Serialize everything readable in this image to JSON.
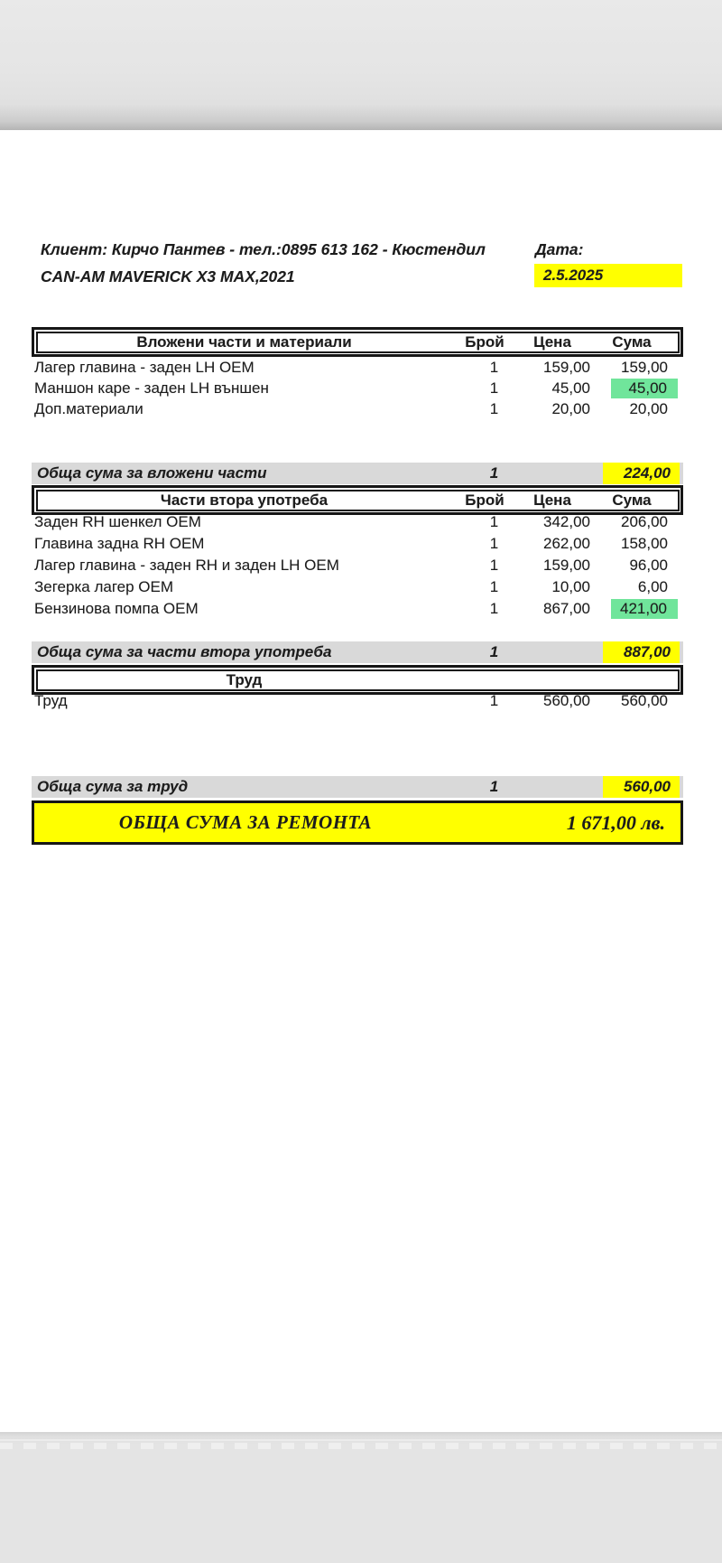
{
  "document": {
    "client_line": "Клиент: Кирчо Пантев - тел.:0895 613 162 - Кюстендил",
    "date_label": "Дата:",
    "vehicle_line": "CAN-AM MAVERICK X3 MAX,2021",
    "date_value": "2.5.2025"
  },
  "columns": {
    "qty": "Брой",
    "price": "Цена",
    "sum": "Сума"
  },
  "sections": [
    {
      "title": "Вложени части и материали",
      "rows": [
        {
          "name": "Лагер главина -  заден LH OEM",
          "qty": "1",
          "price": "159,00",
          "sum": "159,00"
        },
        {
          "name": "Маншон каре - заден LH външен",
          "qty": "1",
          "price": "45,00",
          "sum": "45,00",
          "sum_highlight": "green"
        },
        {
          "name": "Доп.материали",
          "qty": "1",
          "price": "20,00",
          "sum": "20,00"
        }
      ],
      "total": {
        "label": "Обща сума за вложени части",
        "qty": "1",
        "sum": "224,00"
      }
    },
    {
      "title": "Части втора употреба",
      "rows": [
        {
          "name": "Заден RH шенкел OEM",
          "qty": "1",
          "price": "342,00",
          "sum": "206,00"
        },
        {
          "name": "Главина задна RH OEM",
          "qty": "1",
          "price": "262,00",
          "sum": "158,00"
        },
        {
          "name": "Лагер главина - заден RH и заден LH OEM",
          "qty": "1",
          "price": "159,00",
          "sum": "96,00"
        },
        {
          "name": "Зегерка лагер  OEM",
          "qty": "1",
          "price": "10,00",
          "sum": "6,00"
        },
        {
          "name": "Бензинова помпа OEM",
          "qty": "1",
          "price": "867,00",
          "sum": "421,00",
          "sum_highlight": "green"
        }
      ],
      "total": {
        "label": "Обща сума за  части  втора употреба",
        "qty": "1",
        "sum": "887,00"
      }
    },
    {
      "title": "Труд",
      "rows": [
        {
          "name": "Труд",
          "qty": "1",
          "price": "560,00",
          "sum": "560,00"
        }
      ],
      "total": {
        "label": "Обща сума за труд",
        "qty": "1",
        "sum": "560,00"
      }
    }
  ],
  "grand_total": {
    "label": "ОБЩА СУМА  ЗА РЕМОНТА",
    "amount": "1 671,00 лв."
  },
  "colors": {
    "highlight_yellow": "#ffff00",
    "highlight_green": "#70e59b",
    "summary_band_gray": "#d9d9d9",
    "viewer_background_gray": "#e4e4e4"
  }
}
